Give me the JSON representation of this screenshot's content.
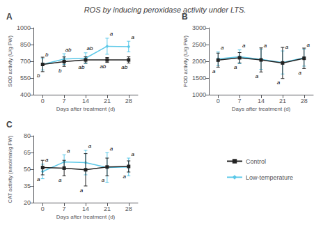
{
  "title": "ROS by inducing peroxidase activity under LTS.",
  "legend": "lower right",
  "chart_data": [
    {
      "type": "line",
      "title": "A",
      "x": [
        0,
        7,
        14,
        21,
        28
      ],
      "xlabel": "Days after treatment (d)",
      "ylabel": "SOD activity (U/g FW)",
      "xlim": [
        -3,
        31
      ],
      "xticks": [
        0,
        7,
        14,
        21,
        28
      ],
      "ylim": [
        400,
        1000
      ],
      "yticks": [
        400,
        550,
        700,
        850,
        1000
      ],
      "grid": false,
      "series": [
        {
          "name": "Control",
          "color": "#222222",
          "marker": "square",
          "values": [
            672,
            697,
            712,
            712,
            712
          ],
          "errors": [
            65,
            42,
            28,
            22,
            28
          ],
          "annotations": [
            "b",
            "b",
            "ab",
            "ab",
            "ab"
          ]
        },
        {
          "name": "Low-temperature",
          "color": "#5bc8e8",
          "marker": "diamond",
          "values": [
            672,
            720,
            728,
            835,
            832
          ],
          "errors": [
            50,
            48,
            48,
            72,
            48
          ],
          "annotations": [
            "b",
            "ab",
            "ab",
            "a",
            "a"
          ]
        }
      ]
    },
    {
      "type": "line",
      "title": "B",
      "x": [
        0,
        7,
        14,
        21,
        28
      ],
      "xlabel": "Days after treatment (d)",
      "ylabel": "POD activity (U/g FW)",
      "xlim": [
        -3,
        31
      ],
      "xticks": [
        0,
        7,
        14,
        21,
        28
      ],
      "ylim": [
        1000,
        3000
      ],
      "yticks": [
        1000,
        1500,
        2000,
        2500,
        3000
      ],
      "grid": false,
      "series": [
        {
          "name": "Control",
          "color": "#222222",
          "marker": "square",
          "values": [
            2035,
            2105,
            2040,
            1950,
            2090
          ],
          "errors": [
            210,
            155,
            360,
            465,
            305
          ],
          "annotations": [
            "a",
            "a",
            "a",
            "a",
            "a"
          ]
        },
        {
          "name": "Low-temperature",
          "color": "#5bc8e8",
          "marker": "diamond",
          "values": [
            2075,
            2135,
            2055,
            1965,
            2105
          ],
          "errors": [
            205,
            205,
            295,
            345,
            250
          ],
          "annotations": [
            "a",
            "a",
            "a",
            "a",
            "a"
          ]
        }
      ]
    },
    {
      "type": "line",
      "title": "C",
      "x": [
        0,
        7,
        14,
        21,
        28
      ],
      "xlabel": "Days after treatment (d)",
      "ylabel": "CAT activity (nmol/min/g FW)",
      "xlim": [
        -3,
        31
      ],
      "xticks": [
        0,
        7,
        14,
        21,
        28
      ],
      "ylim": [
        20,
        80
      ],
      "yticks": [
        20,
        35,
        50,
        65,
        80
      ],
      "grid": false,
      "series": [
        {
          "name": "Control",
          "color": "#222222",
          "marker": "square",
          "values": [
            51.5,
            51.0,
            49.5,
            52.0,
            52.5
          ],
          "errors": [
            6.5,
            7.0,
            14.5,
            8.0,
            5.0
          ],
          "annotations": [
            "a",
            "a",
            "a",
            "a",
            "a"
          ]
        },
        {
          "name": "Low-temperature",
          "color": "#5bc8e8",
          "marker": "diamond",
          "values": [
            48.0,
            56.5,
            56.0,
            51.5,
            52.0
          ],
          "errors": [
            6.5,
            6.5,
            11.0,
            13.5,
            8.0
          ],
          "annotations": [
            "a",
            "a",
            "a",
            "a",
            "a"
          ]
        }
      ]
    }
  ]
}
